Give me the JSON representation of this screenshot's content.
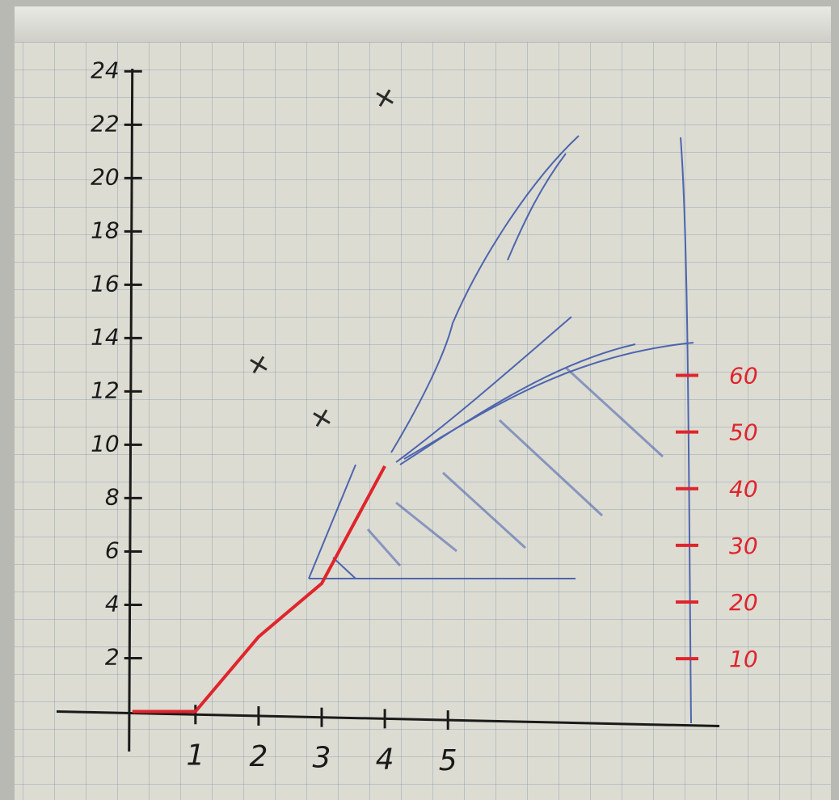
{
  "chart_data": {
    "type": "line",
    "xlim": [
      -1.2,
      9.3
    ],
    "xticks": [
      1,
      2,
      3,
      4,
      5
    ],
    "ylim": [
      -1.5,
      24.1
    ],
    "yticks": [
      2,
      4,
      6,
      8,
      10,
      12,
      14,
      16,
      18,
      20,
      22,
      24
    ],
    "y2lim": [
      -1.4,
      102
    ],
    "y2ticks": [
      10,
      20,
      30,
      40,
      50,
      60
    ],
    "series": [
      {
        "color": "#e0242c",
        "style": "line",
        "x": [
          0,
          1,
          2,
          3,
          4
        ],
        "values": [
          0,
          0,
          2.8,
          4.8,
          9.2
        ]
      },
      {
        "color": "#2a2a2a",
        "style": "cross",
        "x": [
          2,
          3,
          4
        ],
        "values": [
          13,
          11,
          23
        ]
      }
    ],
    "axis_color": "#1a1a1a",
    "y2_color": "#e0242c"
  }
}
